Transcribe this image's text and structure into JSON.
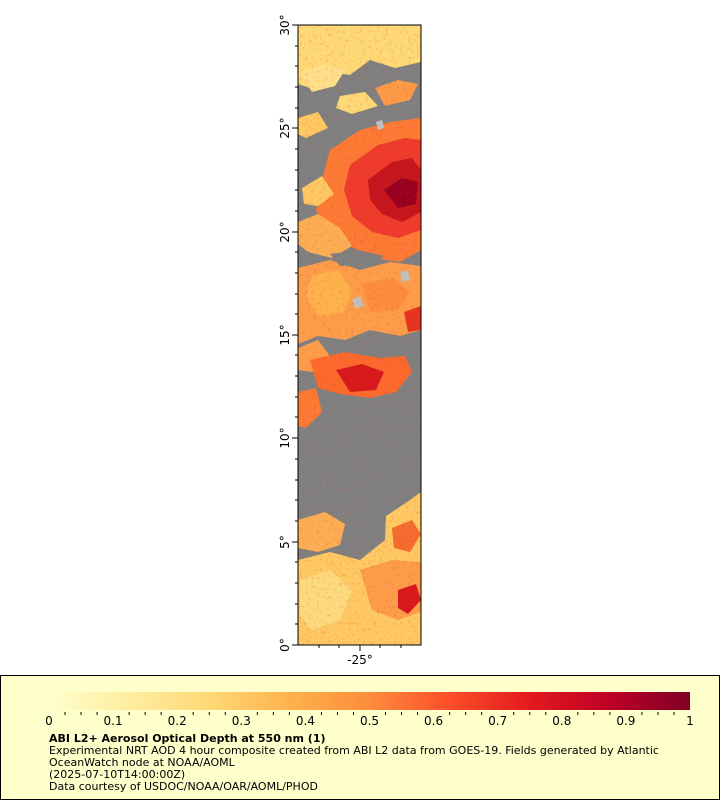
{
  "map": {
    "lat_ticks": [
      "0°",
      "5°",
      "10°",
      "15°",
      "20°",
      "25°",
      "30°"
    ],
    "lon_ticks": [
      "-25°"
    ],
    "colors": {
      "land_no_data": "#808080",
      "ocean_no_data": "#c0c0c0",
      "frame": "#000000"
    }
  },
  "legend": {
    "title": "ABI L2+ Aerosol Optical Depth at 550 nm (1)",
    "description_line1": "Experimental NRT AOD 4 hour composite created from ABI L2 data from GOES-19. Fields generated by Atlantic",
    "description_line2": "OceanWatch node at NOAA/AOML",
    "timestamp": "(2025-07-10T14:00:00Z)",
    "credit": "Data courtesy of USDOC/NOAA/OAR/AOML/PHOD",
    "colorbar_min": 0,
    "colorbar_max": 1,
    "colorbar_labels": [
      "0",
      "0.1",
      "0.2",
      "0.3",
      "0.4",
      "0.5",
      "0.6",
      "0.7",
      "0.8",
      "0.9",
      "1"
    ],
    "colorbar_colors": [
      "#ffffcc",
      "#ffeda0",
      "#fed976",
      "#feb24c",
      "#fd8d3c",
      "#fc4e2a",
      "#e31a1c",
      "#bd0026",
      "#800026"
    ],
    "background": "#ffffcc"
  }
}
